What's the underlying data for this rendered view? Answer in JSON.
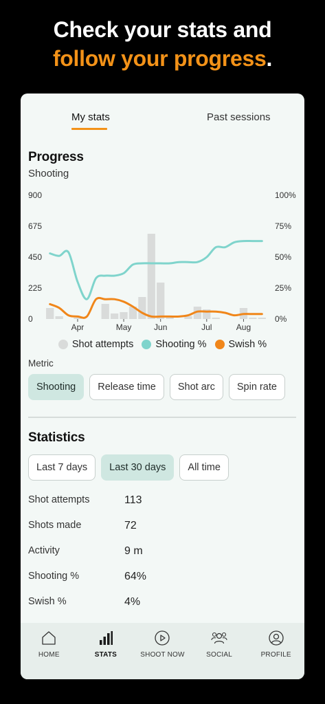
{
  "headline": {
    "line1": "Check your stats and",
    "line2": "follow your progress",
    "period": "."
  },
  "tabs": [
    {
      "label": "My stats",
      "active": true
    },
    {
      "label": "Past sessions",
      "active": false
    }
  ],
  "progress": {
    "title": "Progress",
    "subtitle": "Shooting"
  },
  "chart_data": {
    "type": "bar+line",
    "left_axis": {
      "ticks": [
        "900",
        "675",
        "450",
        "225",
        "0"
      ],
      "ylim": [
        0,
        900
      ]
    },
    "right_axis": {
      "ticks": [
        "100%",
        "75%",
        "50%",
        "25%",
        "0%"
      ],
      "ylim": [
        0,
        100
      ]
    },
    "x_ticks": [
      "Apr",
      "May",
      "Jun",
      "Jul",
      "Aug"
    ],
    "x_tick_positions_index": [
      3,
      8,
      12,
      17,
      21
    ],
    "bars": {
      "name": "Shot attempts",
      "color": "#d9dbda",
      "values": [
        80,
        20,
        0,
        10,
        0,
        0,
        110,
        40,
        50,
        90,
        160,
        620,
        265,
        10,
        0,
        20,
        90,
        70,
        10,
        0,
        0,
        80,
        10,
        10
      ]
    },
    "lines": [
      {
        "name": "Shooting %",
        "color": "#7fd4cc",
        "values": [
          53,
          51,
          54,
          30,
          16,
          33,
          35,
          35,
          37,
          44,
          45,
          45,
          45,
          45,
          46,
          46,
          46,
          50,
          58,
          58,
          62,
          63,
          63,
          63
        ]
      },
      {
        "name": "Swish %",
        "color": "#f0861a",
        "values": [
          12,
          9,
          3,
          2,
          2,
          16,
          16,
          16,
          14,
          10,
          5,
          2,
          2,
          2,
          2,
          3,
          6,
          6,
          6,
          5,
          3,
          4,
          4,
          4
        ]
      }
    ]
  },
  "legend": [
    {
      "label": "Shot attempts",
      "color": "#d9dbda"
    },
    {
      "label": "Shooting %",
      "color": "#7fd4cc"
    },
    {
      "label": "Swish %",
      "color": "#f0861a"
    }
  ],
  "metric": {
    "label": "Metric",
    "chips": [
      {
        "label": "Shooting",
        "selected": true
      },
      {
        "label": "Release time",
        "selected": false
      },
      {
        "label": "Shot arc",
        "selected": false
      },
      {
        "label": "Spin rate",
        "selected": false
      }
    ]
  },
  "statistics": {
    "title": "Statistics",
    "ranges": [
      {
        "label": "Last 7 days",
        "selected": false
      },
      {
        "label": "Last 30 days",
        "selected": true
      },
      {
        "label": "All time",
        "selected": false
      }
    ],
    "rows": [
      {
        "label": "Shot attempts",
        "value": "113"
      },
      {
        "label": "Shots made",
        "value": "72"
      },
      {
        "label": "Activity",
        "value": "9 m"
      },
      {
        "label": "Shooting %",
        "value": "64%"
      },
      {
        "label": "Swish %",
        "value": "4%"
      }
    ]
  },
  "nav": [
    {
      "label": "HOME",
      "icon": "home-icon",
      "active": false
    },
    {
      "label": "STATS",
      "icon": "bar-chart-icon",
      "active": true
    },
    {
      "label": "SHOOT NOW",
      "icon": "play-icon",
      "active": false
    },
    {
      "label": "SOCIAL",
      "icon": "people-icon",
      "active": false
    },
    {
      "label": "PROFILE",
      "icon": "person-icon",
      "active": false
    }
  ]
}
